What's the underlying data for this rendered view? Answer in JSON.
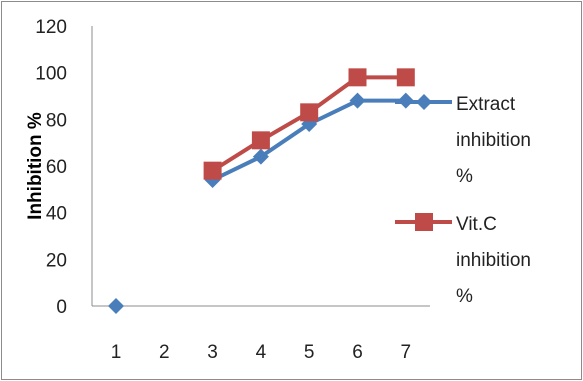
{
  "chart_data": {
    "type": "line",
    "ylabel": "Inhibition %",
    "xlabel": "",
    "categories": [
      "1",
      "2",
      "3",
      "4",
      "5",
      "6",
      "7"
    ],
    "ylim": [
      0,
      120
    ],
    "yticks": [
      "0",
      "20",
      "40",
      "60",
      "80",
      "100",
      "120"
    ],
    "grid": false,
    "legend_position": "right",
    "series": [
      {
        "name": "Extract inhibition %",
        "name_lines": [
          "Extract",
          "inhibition",
          "%"
        ],
        "color": "#4a7ebb",
        "marker": "diamond",
        "values": [
          0,
          null,
          54,
          64,
          78,
          88,
          88
        ]
      },
      {
        "name": "Vit.C inhibition %",
        "name_lines": [
          "Vit.C",
          "inhibition",
          "%"
        ],
        "color": "#be4b48",
        "marker": "square",
        "values": [
          null,
          null,
          58,
          71,
          83,
          98,
          98
        ]
      }
    ]
  }
}
